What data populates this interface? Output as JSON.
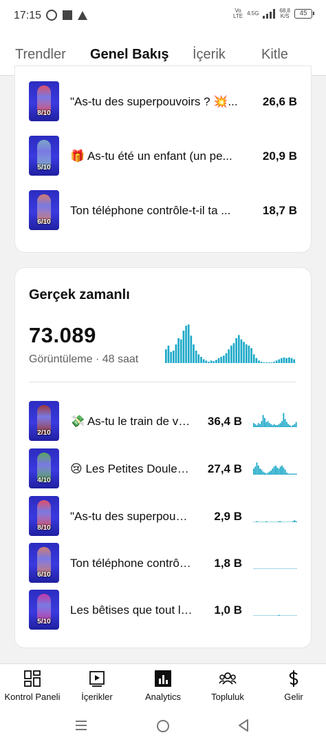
{
  "status_bar": {
    "time": "17:15",
    "network_top": "Vo",
    "network_bottom": "LTE",
    "gen": "4.5G",
    "speed_value": "68,8",
    "speed_unit": "K/S",
    "battery": "45"
  },
  "tabs": [
    {
      "label": "Trendler",
      "active": false
    },
    {
      "label": "Genel Bakış",
      "active": true
    },
    {
      "label": "İçerik",
      "active": false
    },
    {
      "label": "Kitle",
      "active": false
    }
  ],
  "top_content": [
    {
      "title": "\"As-tu des superpouvoirs ? 💥...",
      "views": "26,6 B",
      "thumb_score": "8/10",
      "thumb_color": "#e0506a"
    },
    {
      "title": "🎁 As-tu été un enfant (un pe...",
      "views": "20,9 B",
      "thumb_score": "5/10",
      "thumb_color": "#7ea8c8"
    },
    {
      "title": "Ton téléphone contrôle-t-il ta ...",
      "views": "18,7 B",
      "thumb_score": "6/10",
      "thumb_color": "#d27c73"
    }
  ],
  "realtime": {
    "title": "Gerçek zamanlı",
    "total": "73.089",
    "subtitle": "Görüntüleme · 48 saat",
    "accent": "#1ba8c8",
    "bars": [
      22,
      28,
      18,
      20,
      30,
      40,
      38,
      52,
      60,
      62,
      44,
      30,
      20,
      14,
      10,
      6,
      4,
      2,
      4,
      3,
      5,
      8,
      10,
      12,
      16,
      22,
      28,
      32,
      40,
      45,
      38,
      34,
      30,
      28,
      24,
      14,
      8,
      4,
      2,
      1,
      1,
      0,
      1,
      2,
      4,
      6,
      8,
      9,
      8,
      9,
      8,
      6
    ]
  },
  "realtime_content": [
    {
      "title": "💸 As-tu le train de vie de ...",
      "views": "36,4 B",
      "thumb_score": "2/10",
      "thumb_color": "#a03838",
      "spark": [
        4,
        3,
        2,
        4,
        3,
        6,
        12,
        9,
        5,
        6,
        4,
        3,
        2,
        3,
        2,
        2,
        3,
        4,
        6,
        14,
        8,
        5,
        3,
        2,
        1,
        2,
        3,
        5
      ]
    },
    {
      "title": "😢 Les Petites Douleurs qui...",
      "views": "27,4 B",
      "thumb_score": "4/10",
      "thumb_color": "#5aa860",
      "spark": [
        6,
        8,
        12,
        9,
        6,
        5,
        3,
        2,
        1,
        2,
        3,
        4,
        6,
        8,
        9,
        7,
        6,
        8,
        9,
        7,
        5,
        2,
        1,
        1,
        1,
        1,
        1,
        1
      ]
    },
    {
      "title": "\"As-tu des superpouvoirs ? 💥...",
      "views": "2,9 B",
      "thumb_score": "8/10",
      "thumb_color": "#e0506a",
      "spark": [
        0,
        0,
        1,
        0,
        0,
        0,
        0,
        0,
        1,
        0,
        0,
        0,
        0,
        0,
        0,
        0,
        1,
        1,
        0,
        0,
        0,
        0,
        0,
        0,
        0,
        1,
        2,
        1
      ]
    },
    {
      "title": "Ton téléphone contrôle-t-il ta ...",
      "views": "1,8 B",
      "thumb_score": "6/10",
      "thumb_color": "#d27c73",
      "spark": [
        0,
        0,
        0,
        0,
        0,
        0,
        0,
        0,
        0,
        0,
        0,
        0,
        0,
        0,
        0,
        0,
        0,
        0,
        0,
        0,
        0,
        0,
        0,
        0,
        0,
        0,
        0,
        0
      ]
    },
    {
      "title": "Les bêtises que tout le monde...",
      "views": "1,0 B",
      "thumb_score": "5/10",
      "thumb_color": "#c03aa8",
      "spark": [
        0,
        0,
        0,
        0,
        0,
        0,
        0,
        0,
        0,
        0,
        0,
        0,
        0,
        0,
        0,
        0,
        1,
        0,
        0,
        0,
        0,
        0,
        0,
        0,
        0,
        0,
        0,
        0
      ]
    }
  ],
  "bottom_nav": [
    {
      "label": "Kontrol Paneli",
      "icon": "dashboard-icon"
    },
    {
      "label": "İçerikler",
      "icon": "content-icon"
    },
    {
      "label": "Analytics",
      "icon": "analytics-icon"
    },
    {
      "label": "Topluluk",
      "icon": "community-icon"
    },
    {
      "label": "Gelir",
      "icon": "dollar-icon"
    }
  ]
}
